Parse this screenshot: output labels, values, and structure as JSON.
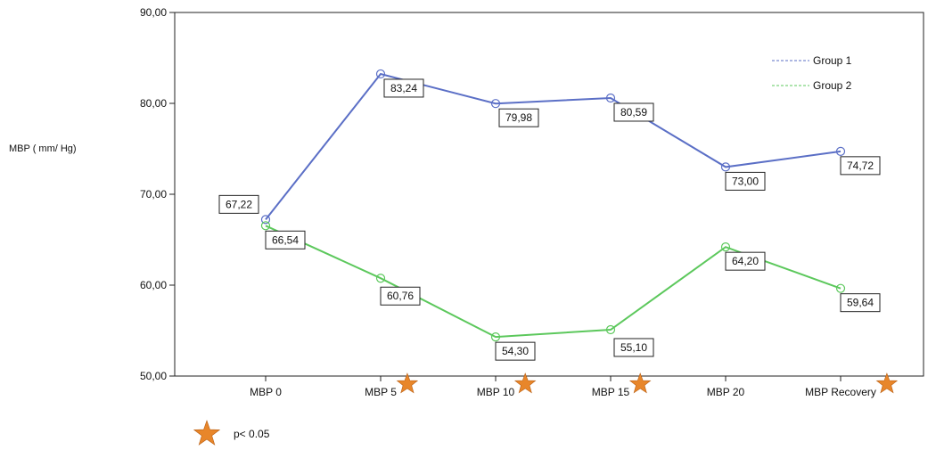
{
  "chart_data": {
    "type": "line",
    "ylabel": "MBP ( mm/  Hg)",
    "xlabel": "",
    "title": "",
    "ylim": [
      50,
      90
    ],
    "yticks": [
      "50,00",
      "60,00",
      "70,00",
      "80,00",
      "90,00"
    ],
    "categories": [
      "MBP 0",
      "MBP 5",
      "MBP 10",
      "MBP 15",
      "MBP 20",
      "MBP Recovery"
    ],
    "significant": [
      false,
      true,
      true,
      true,
      false,
      true
    ],
    "series": [
      {
        "name": "Group 1",
        "color": "#5b6fc6",
        "values": [
          67.22,
          83.24,
          79.98,
          80.59,
          73.0,
          74.72
        ],
        "labels": [
          "67,22",
          "83,24",
          "79,98",
          "80,59",
          "73,00",
          "74,72"
        ]
      },
      {
        "name": "Group 2",
        "color": "#5cc85c",
        "values": [
          66.54,
          60.76,
          54.3,
          55.1,
          64.2,
          59.64
        ],
        "labels": [
          "66,54",
          "60,76",
          "54,30",
          "55,10",
          "64,20",
          "59,64"
        ]
      }
    ],
    "legend_position": "top-right",
    "grid": false,
    "note": "p< 0.05",
    "marker_color": "#e8862a"
  }
}
